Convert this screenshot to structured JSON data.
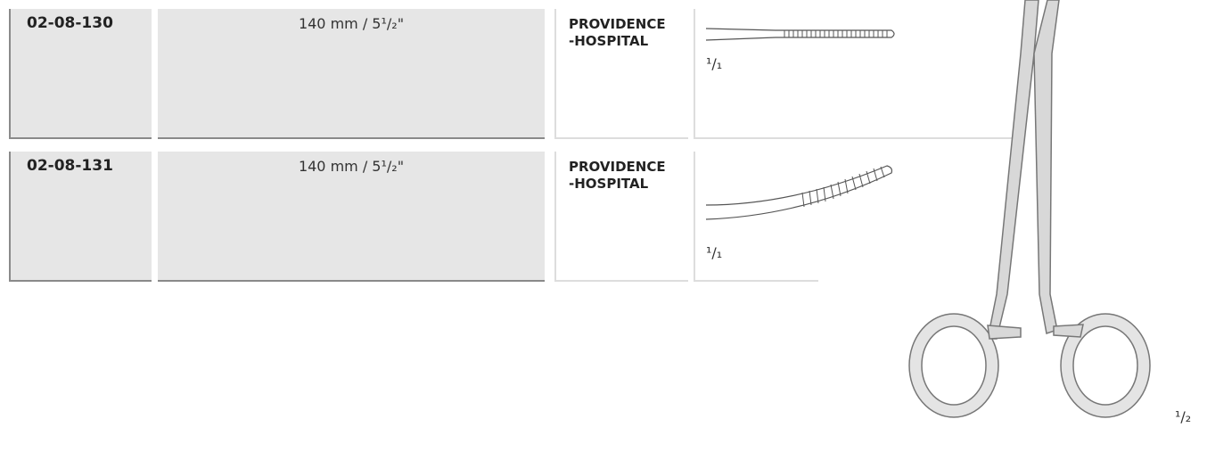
{
  "rows": [
    {
      "code": "02-08-130",
      "size": "140 mm / 5¹/₂\"",
      "name": "PROVIDENCE-HOSPITAL",
      "scale": "¹/₁"
    },
    {
      "code": "02-08-131",
      "size": "140 mm / 5¹/₂\"",
      "name": "PROVIDENCE-HOSPITAL",
      "scale": "¹/₁"
    }
  ],
  "figure_scale": "¹/₂"
}
